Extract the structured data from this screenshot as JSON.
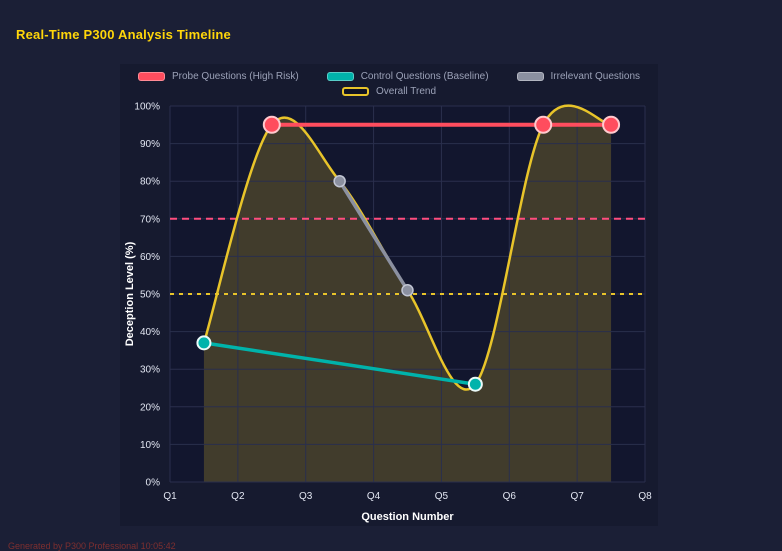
{
  "page": {
    "title": "Real-Time P300 Analysis Timeline",
    "footer": "Generated by P300 Professional  10:05:42"
  },
  "colors": {
    "background": "#1b1f36",
    "panel": "#161a2f",
    "plot_bg": "#12162e",
    "grid": "#2a2f4d",
    "title": "#ffd60a",
    "axis_text": "#e2e6f2",
    "axis_title": "#ffffff",
    "legend_text": "#9ba1b7",
    "footer_text": "#7e2f2f"
  },
  "chart_data": {
    "type": "line",
    "title": "Real-Time P300 Analysis Timeline",
    "xlabel": "Question Number",
    "ylabel": "Deception Level (%)",
    "xlim": [
      1,
      8
    ],
    "ylim": [
      0,
      100
    ],
    "x_tick_values": [
      1,
      2,
      3,
      4,
      5,
      6,
      7,
      8
    ],
    "x_tick_labels": [
      "Q1",
      "Q2",
      "Q3",
      "Q4",
      "Q5",
      "Q6",
      "Q7",
      "Q8"
    ],
    "y_tick_values": [
      0,
      10,
      20,
      30,
      40,
      50,
      60,
      70,
      80,
      90,
      100
    ],
    "y_tick_labels": [
      "0%",
      "10%",
      "20%",
      "30%",
      "40%",
      "50%",
      "60%",
      "70%",
      "80%",
      "90%",
      "100%"
    ],
    "grid": true,
    "legend_position": "top",
    "series": [
      {
        "name": "Probe Questions (High Risk)",
        "color": "#ff4d5e",
        "x": [
          2.5,
          6.5,
          7.5
        ],
        "y": [
          95,
          95,
          95
        ],
        "line_width": 4,
        "marker": {
          "radius": 8,
          "stroke": "#ffc9ce",
          "stroke_width": 2
        },
        "legend_swatch": "fill"
      },
      {
        "name": "Control Questions (Baseline)",
        "color": "#00b3ab",
        "x": [
          1.5,
          5.5
        ],
        "y": [
          37,
          26
        ],
        "line_width": 3.5,
        "marker": {
          "radius": 6.5,
          "stroke": "#eafaf9",
          "stroke_width": 2
        },
        "legend_swatch": "fill"
      },
      {
        "name": "Irrelevant Questions",
        "color": "#8b90a0",
        "x": [
          3.5,
          4.5
        ],
        "y": [
          80,
          51
        ],
        "line_width": 3.5,
        "marker": {
          "radius": 5.5,
          "stroke": "#c2c6d4",
          "stroke_width": 1.5
        },
        "legend_swatch": "fill"
      },
      {
        "name": "Overall Trend",
        "color": "#e8c42a",
        "x": [
          1.5,
          2.5,
          3.5,
          4.5,
          5.5,
          6.5,
          7.5
        ],
        "y": [
          37,
          95,
          80,
          51,
          26,
          95,
          95
        ],
        "smooth": true,
        "fill": true,
        "fill_opacity": 0.22,
        "line_width": 2.5,
        "legend_swatch": "outline"
      }
    ],
    "reference_lines": [
      {
        "y": 70,
        "color": "#ff4d7e",
        "dash": "7 5"
      },
      {
        "y": 50,
        "color": "#e8c42a",
        "dash": "4 5"
      }
    ]
  }
}
